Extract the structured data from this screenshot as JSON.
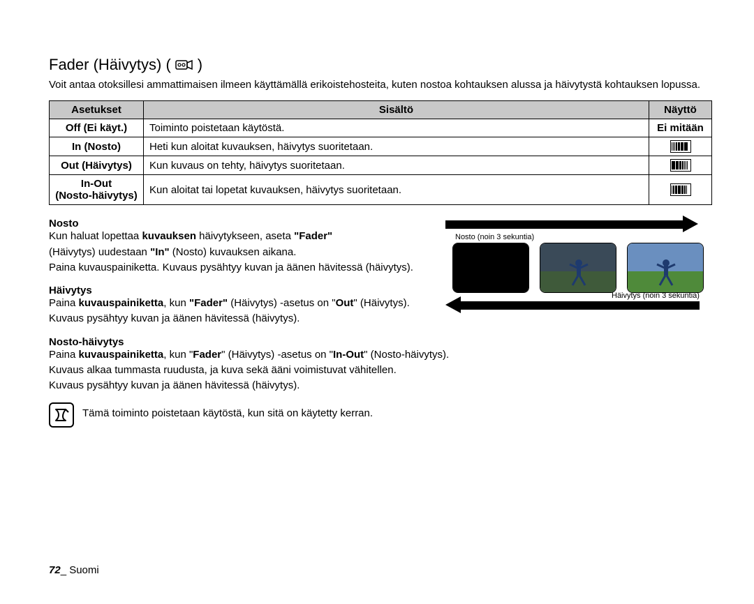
{
  "title_prefix": "Fader (Häivytys) (",
  "title_suffix": " )",
  "intro": "Voit antaa otoksillesi ammattimaisen ilmeen käyttämällä erikoistehosteita, kuten nostoa kohtauksen alussa ja häivytystä kohtauksen lopussa.",
  "table": {
    "headers": {
      "settings": "Asetukset",
      "content": "Sisältö",
      "display": "Näyttö"
    },
    "rows": [
      {
        "setting": "Off (Ei käyt.)",
        "content": "Toiminto poistetaan käytöstä.",
        "display_text": "Ei mitään",
        "icon": "none"
      },
      {
        "setting": "In (Nosto)",
        "content": "Heti kun aloitat kuvauksen, häivytys suoritetaan.",
        "display_text": "",
        "icon": "in"
      },
      {
        "setting": "Out (Häivytys)",
        "content": "Kun kuvaus on tehty, häivytys suoritetaan.",
        "display_text": "",
        "icon": "out"
      },
      {
        "setting": "In-Out\n(Nosto-häivytys)",
        "content": "Kun aloitat tai lopetat kuvauksen, häivytys suoritetaan.",
        "display_text": "",
        "icon": "inout"
      }
    ]
  },
  "sections": {
    "nosto": {
      "heading": "Nosto",
      "l1a": "Kun haluat lopettaa ",
      "l1b": "kuvauksen",
      "l1c": " häivytykseen, aseta ",
      "l1d": "\"Fader\"",
      "l2a": "(Häivytys) uudestaan ",
      "l2b": "\"In\"",
      "l2c": " (Nosto) kuvauksen aikana.",
      "l3": "Paina kuvauspainiketta. Kuvaus pysähtyy kuvan ja äänen hävitessä (häivytys)."
    },
    "haivytys": {
      "heading": "Häivytys",
      "l1a": "Paina ",
      "l1b": "kuvauspainiketta",
      "l1c": ", kun ",
      "l1d": "\"Fader\"",
      "l1e": " (Häivytys) -asetus on \"",
      "l1f": "Out",
      "l1g": "\" (Häivytys).",
      "l2": "Kuvaus pysähtyy kuvan ja äänen hävitessä (häivytys)."
    },
    "nostohaivytys": {
      "heading": "Nosto-häivytys",
      "l1a": "Paina ",
      "l1b": "kuvauspainiketta",
      "l1c": ", kun \"",
      "l1d": "Fader",
      "l1e": "\" (Häivytys) -asetus on \"",
      "l1f": "In-Out",
      "l1g": "\" (Nosto-häivytys).",
      "l2": "Kuvaus alkaa tummasta ruudusta, ja kuva sekä ääni voimistuvat vähitellen.",
      "l3": "Kuvaus pysähtyy kuvan ja äänen hävitessä (häivytys)."
    }
  },
  "note": "Tämä toiminto poistetaan käytöstä, kun sitä on käytetty kerran.",
  "diagram": {
    "label_top": "Nosto (noin 3 sekuntia)",
    "label_bottom": "Häivytys (noin 3 sekuntia)",
    "thumb_colors": {
      "black": "#000000",
      "mid_ground": "#3f5a3a",
      "mid_sky": "#3a4a58",
      "full_ground": "#4f8a3a",
      "full_sky": "#6a8fbf",
      "figure": "#1e3a6e"
    }
  },
  "footer": {
    "page": "72",
    "sep": "_ ",
    "lang": "Suomi"
  }
}
